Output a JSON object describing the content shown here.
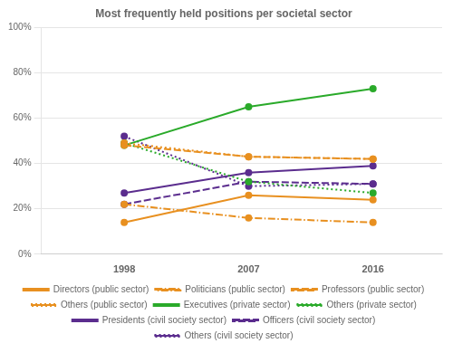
{
  "chart_data": {
    "type": "line",
    "title": "Most frequently held positions per societal sector",
    "x": [
      1998,
      2007,
      2016
    ],
    "xlim": [
      1992,
      2021
    ],
    "xticks": [
      1998,
      2007,
      2016
    ],
    "ylim": [
      0,
      100
    ],
    "yticks": [
      {
        "value": 0,
        "label": "0%"
      },
      {
        "value": 20,
        "label": "20%"
      },
      {
        "value": 40,
        "label": "40%"
      },
      {
        "value": 60,
        "label": "60%"
      },
      {
        "value": 80,
        "label": "80%"
      },
      {
        "value": 100,
        "label": "100%"
      }
    ],
    "grid": "y",
    "legend": "bottom",
    "series": [
      {
        "name": "Directors (public sector)",
        "values": [
          14,
          26,
          24
        ],
        "color": "#E89020",
        "line_style": "solid",
        "marker": "circle"
      },
      {
        "name": "Politicians (public sector)",
        "values": [
          22,
          16,
          14
        ],
        "color": "#E89020",
        "line_style": "dashdot",
        "marker": "circle"
      },
      {
        "name": "Professors (public sector)",
        "values": [
          48,
          43,
          42
        ],
        "color": "#E89020",
        "line_style": "dashed",
        "marker": "circle"
      },
      {
        "name": "Others (public sector)",
        "values": [
          49,
          43,
          42
        ],
        "color": "#E89020",
        "line_style": "dotted",
        "marker": "circle"
      },
      {
        "name": "Executives (private sector)",
        "values": [
          48,
          65,
          73
        ],
        "color": "#2AAA2A",
        "line_style": "solid",
        "marker": "circle"
      },
      {
        "name": "Others (private sector)",
        "values": [
          49,
          32,
          27
        ],
        "color": "#2AAA2A",
        "line_style": "dotted",
        "marker": "circle"
      },
      {
        "name": "Presidents (civil society sector)",
        "values": [
          27,
          36,
          39
        ],
        "color": "#5B2D8E",
        "line_style": "solid",
        "marker": "circle"
      },
      {
        "name": "Officers (civil society sector)",
        "values": [
          22,
          32,
          31
        ],
        "color": "#5B2D8E",
        "line_style": "dashed",
        "marker": "circle"
      },
      {
        "name": "Others (civil society sector)",
        "values": [
          52,
          30,
          31
        ],
        "color": "#5B2D8E",
        "line_style": "dotted",
        "marker": "circle"
      }
    ]
  }
}
